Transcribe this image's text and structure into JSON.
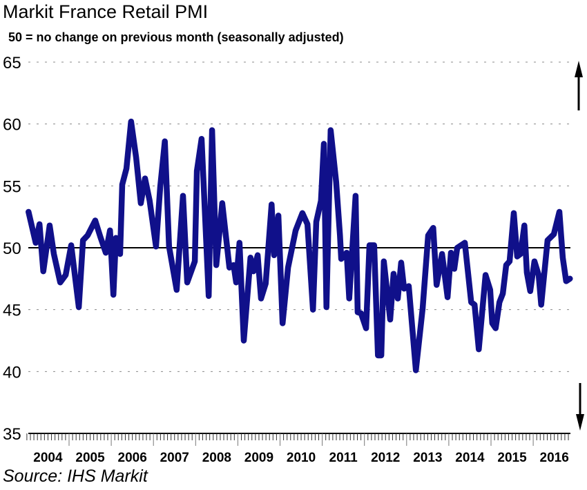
{
  "chart_data": {
    "type": "line",
    "title": "Markit France Retail PMI",
    "subtitle": "50 = no change on previous month (seasonally adjusted)",
    "source": "Source: IHS Markit",
    "xlabel": "",
    "ylabel": "",
    "ylim": [
      35,
      65
    ],
    "xlim": [
      2004.0,
      2016.9
    ],
    "yticks": [
      35,
      40,
      45,
      50,
      55,
      60,
      65
    ],
    "ytick_labels": [
      "35",
      "40",
      "45",
      "50",
      "55",
      "60",
      "65"
    ],
    "xtick_labels": [
      "2004",
      "2005",
      "2006",
      "2007",
      "2008",
      "2009",
      "2010",
      "2011",
      "2012",
      "2013",
      "2014",
      "2015",
      "2016"
    ],
    "reference_line": 50,
    "grid": "horizontal dotted",
    "line_color": "#10108a",
    "arrows": [
      "up",
      "down"
    ],
    "series": [
      {
        "name": "Markit France Retail PMI",
        "points": [
          [
            2004.04,
            52.9
          ],
          [
            2004.21,
            50.4
          ],
          [
            2004.3,
            51.9
          ],
          [
            2004.39,
            48.1
          ],
          [
            2004.54,
            51.8
          ],
          [
            2004.64,
            49.5
          ],
          [
            2004.79,
            47.2
          ],
          [
            2004.92,
            47.8
          ],
          [
            2005.05,
            50.2
          ],
          [
            2005.23,
            45.2
          ],
          [
            2005.33,
            50.6
          ],
          [
            2005.44,
            51.0
          ],
          [
            2005.62,
            52.2
          ],
          [
            2005.74,
            50.9
          ],
          [
            2005.87,
            49.6
          ],
          [
            2005.97,
            51.4
          ],
          [
            2006.05,
            46.2
          ],
          [
            2006.11,
            50.8
          ],
          [
            2006.21,
            49.5
          ],
          [
            2006.26,
            55.1
          ],
          [
            2006.36,
            56.4
          ],
          [
            2006.47,
            60.2
          ],
          [
            2006.59,
            57.3
          ],
          [
            2006.7,
            53.6
          ],
          [
            2006.8,
            55.6
          ],
          [
            2006.91,
            53.8
          ],
          [
            2007.06,
            50.1
          ],
          [
            2007.16,
            54.9
          ],
          [
            2007.27,
            58.6
          ],
          [
            2007.37,
            50.1
          ],
          [
            2007.55,
            46.6
          ],
          [
            2007.7,
            54.2
          ],
          [
            2007.8,
            47.2
          ],
          [
            2007.98,
            48.9
          ],
          [
            2008.03,
            56.2
          ],
          [
            2008.14,
            58.8
          ],
          [
            2008.31,
            46.1
          ],
          [
            2008.39,
            59.5
          ],
          [
            2008.49,
            48.6
          ],
          [
            2008.63,
            53.6
          ],
          [
            2008.8,
            48.4
          ],
          [
            2008.9,
            48.6
          ],
          [
            2008.96,
            47.2
          ],
          [
            2009.04,
            50.4
          ],
          [
            2009.14,
            42.5
          ],
          [
            2009.3,
            49.2
          ],
          [
            2009.37,
            48.1
          ],
          [
            2009.47,
            49.4
          ],
          [
            2009.55,
            45.9
          ],
          [
            2009.66,
            47.1
          ],
          [
            2009.8,
            53.5
          ],
          [
            2009.86,
            49.4
          ],
          [
            2009.96,
            52.6
          ],
          [
            2010.06,
            43.9
          ],
          [
            2010.19,
            48.4
          ],
          [
            2010.37,
            51.4
          ],
          [
            2010.53,
            52.8
          ],
          [
            2010.65,
            51.9
          ],
          [
            2010.78,
            45.0
          ],
          [
            2010.86,
            52.1
          ],
          [
            2010.97,
            53.8
          ],
          [
            2011.04,
            58.4
          ],
          [
            2011.1,
            45.2
          ],
          [
            2011.2,
            59.5
          ],
          [
            2011.33,
            55.3
          ],
          [
            2011.42,
            51.0
          ],
          [
            2011.45,
            49.1
          ],
          [
            2011.58,
            49.6
          ],
          [
            2011.64,
            45.9
          ],
          [
            2011.79,
            54.2
          ],
          [
            2011.84,
            44.8
          ],
          [
            2011.92,
            44.7
          ],
          [
            2012.04,
            43.5
          ],
          [
            2012.12,
            50.2
          ],
          [
            2012.23,
            50.2
          ],
          [
            2012.32,
            41.3
          ],
          [
            2012.4,
            41.3
          ],
          [
            2012.46,
            48.9
          ],
          [
            2012.61,
            44.2
          ],
          [
            2012.69,
            47.9
          ],
          [
            2012.79,
            45.9
          ],
          [
            2012.87,
            48.8
          ],
          [
            2012.94,
            46.7
          ],
          [
            2013.05,
            46.9
          ],
          [
            2013.22,
            40.1
          ],
          [
            2013.38,
            45.1
          ],
          [
            2013.51,
            51.0
          ],
          [
            2013.63,
            51.6
          ],
          [
            2013.71,
            47.0
          ],
          [
            2013.84,
            49.5
          ],
          [
            2013.97,
            46.0
          ],
          [
            2014.05,
            49.6
          ],
          [
            2014.13,
            48.3
          ],
          [
            2014.2,
            50.0
          ],
          [
            2014.38,
            50.4
          ],
          [
            2014.53,
            45.6
          ],
          [
            2014.61,
            45.4
          ],
          [
            2014.71,
            41.8
          ],
          [
            2014.87,
            47.8
          ],
          [
            2014.98,
            46.6
          ],
          [
            2015.03,
            43.9
          ],
          [
            2015.11,
            43.5
          ],
          [
            2015.2,
            45.6
          ],
          [
            2015.28,
            46.3
          ],
          [
            2015.36,
            48.6
          ],
          [
            2015.44,
            48.9
          ],
          [
            2015.54,
            52.8
          ],
          [
            2015.62,
            49.3
          ],
          [
            2015.7,
            49.5
          ],
          [
            2015.79,
            51.8
          ],
          [
            2015.85,
            48.0
          ],
          [
            2015.93,
            46.5
          ],
          [
            2016.03,
            48.9
          ],
          [
            2016.13,
            47.8
          ],
          [
            2016.19,
            45.4
          ],
          [
            2016.34,
            50.6
          ],
          [
            2016.49,
            51.1
          ],
          [
            2016.62,
            52.9
          ],
          [
            2016.7,
            49.2
          ],
          [
            2016.78,
            47.3
          ],
          [
            2016.87,
            47.5
          ]
        ]
      }
    ]
  }
}
